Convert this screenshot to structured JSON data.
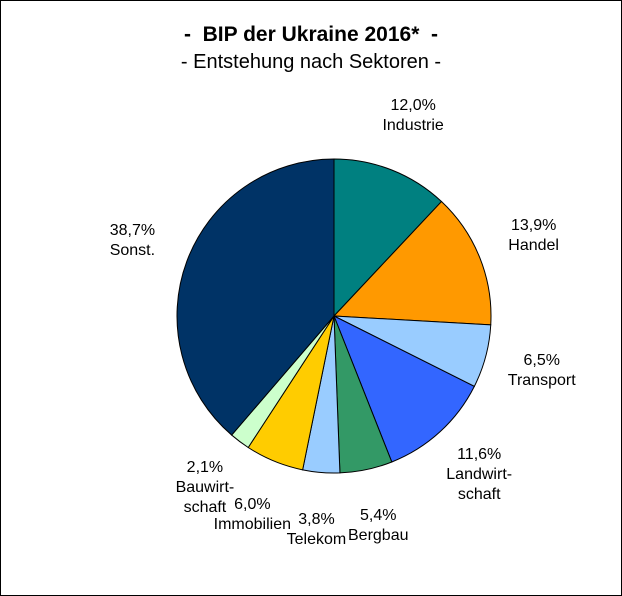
{
  "chart_data": {
    "type": "pie",
    "title": "-  BIP der Ukraine 2016*  -",
    "subtitle": "- Entstehung nach Sektoren -",
    "categories": [
      "Industrie",
      "Handel",
      "Transport",
      "Landwirt-\nschaft",
      "Bergbau",
      "Telekom",
      "Immobilien",
      "Bauwirt-\nschaft",
      "Sonst."
    ],
    "values": [
      12.0,
      13.9,
      6.5,
      11.6,
      5.4,
      3.8,
      6.0,
      2.1,
      38.7
    ],
    "value_labels": [
      "12,0%",
      "13,9%",
      "6,5%",
      "11,6%",
      "5,4%",
      "3,8%",
      "6,0%",
      "2,1%",
      "38,7%"
    ],
    "colors": [
      "#008080",
      "#ff9900",
      "#99ccff",
      "#3366ff",
      "#339966",
      "#99ccff",
      "#ffcc00",
      "#ccffcc",
      "#003366"
    ]
  }
}
